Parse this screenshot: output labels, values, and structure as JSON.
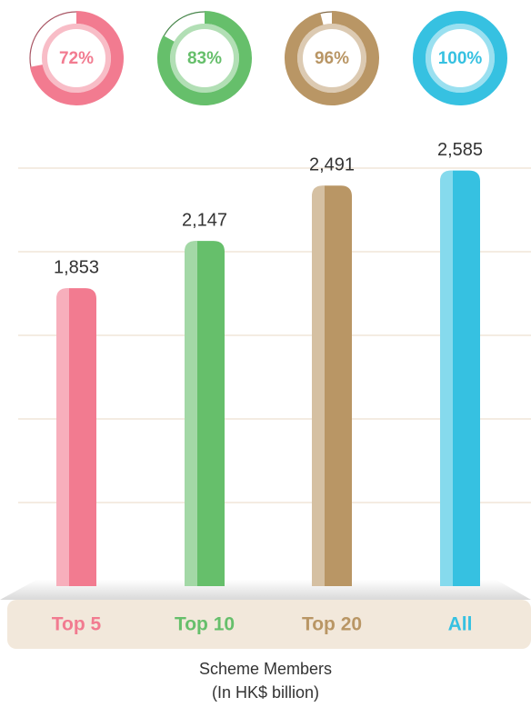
{
  "chart_data": {
    "type": "bar",
    "categories": [
      "Top 5",
      "Top 10",
      "Top 20",
      "All"
    ],
    "values": [
      1853,
      2147,
      2491,
      2585
    ],
    "value_labels": [
      "1,853",
      "2,147",
      "2,491",
      "2,585"
    ],
    "percent_values": [
      72,
      83,
      96,
      100
    ],
    "percent_labels": [
      "72%",
      "83%",
      "96%",
      "100%"
    ],
    "colors": [
      "#f27b90",
      "#66bf6b",
      "#b99665",
      "#36c1e1"
    ],
    "ylim": [
      0,
      2600
    ],
    "yticks": [
      520,
      1040,
      1560,
      2080,
      2600
    ],
    "grid": true,
    "xlabel": "Scheme Members",
    "unit_label": "(In HK$ billion)"
  }
}
